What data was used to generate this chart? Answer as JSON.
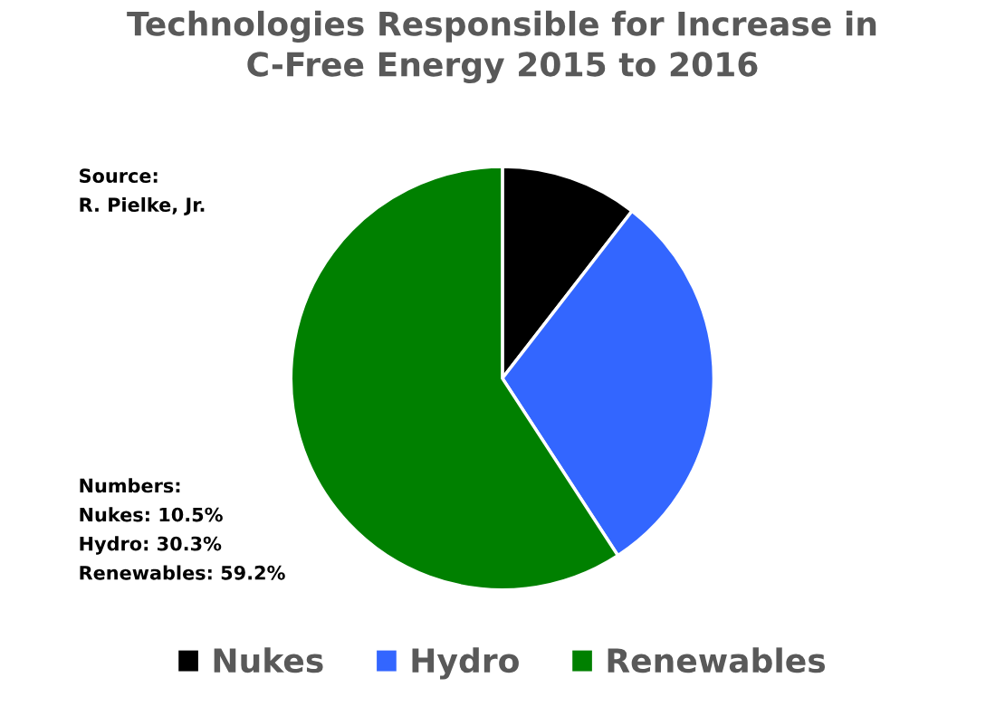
{
  "chart_data": {
    "type": "pie",
    "title": "Technologies Responsible for Increase in\nC-Free Energy 2015 to 2016",
    "categories": [
      "Nukes",
      "Hydro",
      "Renewables"
    ],
    "values": [
      10.5,
      30.3,
      59.2
    ],
    "colors": [
      "#000000",
      "#3366ff",
      "#008000"
    ],
    "legend": "bottom",
    "annotations": [
      "Source:\nR. Pielke, Jr.",
      "Numbers:\nNukes: 10.5%\nHydro: 30.3%\nRenewables: 59.2%"
    ]
  }
}
